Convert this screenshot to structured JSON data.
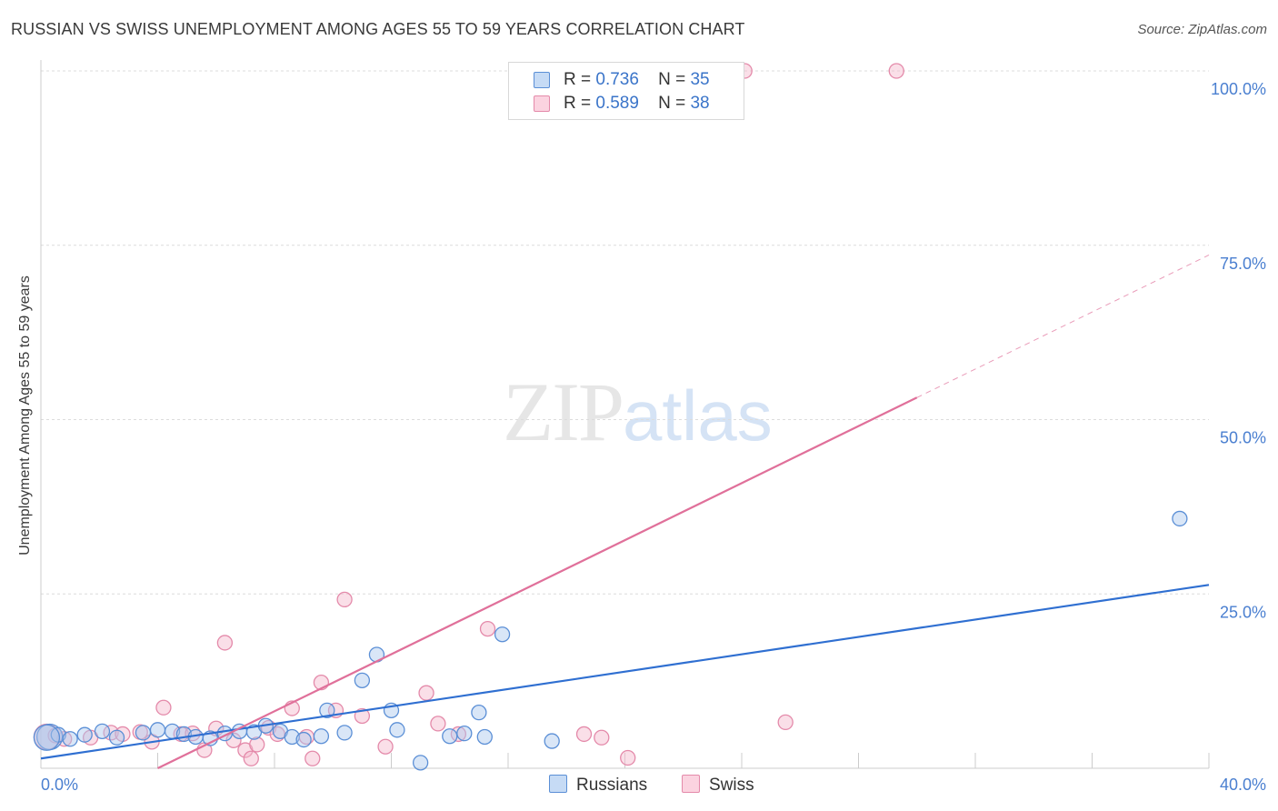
{
  "header": {
    "title": "RUSSIAN VS SWISS UNEMPLOYMENT AMONG AGES 55 TO 59 YEARS CORRELATION CHART",
    "source": "Source: ZipAtlas.com"
  },
  "watermark": {
    "zip": "ZIP",
    "atlas": "atlas"
  },
  "legend": {
    "rows": [
      {
        "r_label": "R =",
        "r_value": "0.736",
        "n_label": "N =",
        "n_value": "35"
      },
      {
        "r_label": "R =",
        "r_value": "0.589",
        "n_label": "N =",
        "n_value": "38"
      }
    ]
  },
  "bottom_legend": {
    "russians": "Russians",
    "swiss": "Swiss"
  },
  "colors": {
    "russians_fill": "#aac8ee",
    "russians_stroke": "#5b8fd6",
    "russians_line": "#2f6fd1",
    "swiss_fill": "#f5b8cc",
    "swiss_stroke": "#e48aaa",
    "swiss_line": "#e0709a"
  },
  "chart_data": {
    "type": "scatter",
    "title": "RUSSIAN VS SWISS UNEMPLOYMENT AMONG AGES 55 TO 59 YEARS CORRELATION CHART",
    "xlabel": "",
    "ylabel": "Unemployment Among Ages 55 to 59 years",
    "xlim": [
      0,
      40
    ],
    "ylim": [
      0,
      100
    ],
    "x_tick_labels": [
      "0.0%",
      "40.0%"
    ],
    "y_tick_labels": [
      "100.0%",
      "75.0%",
      "50.0%",
      "25.0%"
    ],
    "y_ticks": [
      100,
      75,
      50,
      25
    ],
    "grid": true,
    "series": [
      {
        "name": "Russians",
        "points": [
          [
            0.3,
            4.5
          ],
          [
            0.6,
            4.8
          ],
          [
            1.0,
            4.2
          ],
          [
            1.5,
            4.8
          ],
          [
            2.1,
            5.3
          ],
          [
            2.6,
            4.4
          ],
          [
            3.5,
            5.1
          ],
          [
            4.0,
            5.5
          ],
          [
            4.5,
            5.3
          ],
          [
            4.9,
            4.9
          ],
          [
            5.3,
            4.5
          ],
          [
            5.8,
            4.3
          ],
          [
            6.3,
            5.0
          ],
          [
            6.8,
            5.3
          ],
          [
            7.3,
            5.2
          ],
          [
            7.7,
            6.1
          ],
          [
            8.2,
            5.3
          ],
          [
            8.6,
            4.5
          ],
          [
            9.0,
            4.1
          ],
          [
            9.6,
            4.6
          ],
          [
            9.8,
            8.3
          ],
          [
            10.4,
            5.1
          ],
          [
            11.0,
            12.6
          ],
          [
            11.5,
            16.3
          ],
          [
            12.0,
            8.3
          ],
          [
            12.2,
            5.5
          ],
          [
            13.0,
            0.8
          ],
          [
            14.0,
            4.6
          ],
          [
            14.5,
            5.0
          ],
          [
            15.0,
            8.0
          ],
          [
            15.2,
            4.5
          ],
          [
            15.8,
            19.2
          ],
          [
            17.5,
            3.9
          ],
          [
            39.0,
            35.8
          ],
          [
            0.2,
            4.4
          ]
        ],
        "trend": {
          "x": [
            0,
            40
          ],
          "y": [
            1.4,
            26.3
          ]
        }
      },
      {
        "name": "Swiss",
        "points": [
          [
            0.2,
            4.5
          ],
          [
            0.8,
            4.2
          ],
          [
            1.7,
            4.4
          ],
          [
            2.4,
            5.1
          ],
          [
            2.8,
            4.9
          ],
          [
            3.4,
            5.2
          ],
          [
            3.8,
            3.8
          ],
          [
            4.2,
            8.7
          ],
          [
            4.8,
            4.9
          ],
          [
            5.2,
            5.0
          ],
          [
            5.6,
            2.6
          ],
          [
            6.0,
            5.7
          ],
          [
            6.3,
            18.0
          ],
          [
            6.6,
            4.0
          ],
          [
            7.0,
            2.6
          ],
          [
            7.2,
            1.4
          ],
          [
            7.4,
            3.4
          ],
          [
            7.8,
            5.8
          ],
          [
            8.1,
            4.9
          ],
          [
            8.6,
            8.6
          ],
          [
            9.1,
            4.5
          ],
          [
            9.3,
            1.4
          ],
          [
            9.6,
            12.3
          ],
          [
            10.1,
            8.3
          ],
          [
            10.4,
            24.2
          ],
          [
            11.0,
            7.5
          ],
          [
            11.8,
            3.1
          ],
          [
            13.2,
            10.8
          ],
          [
            13.6,
            6.4
          ],
          [
            14.3,
            4.9
          ],
          [
            15.3,
            20.0
          ],
          [
            18.6,
            4.9
          ],
          [
            19.2,
            4.4
          ],
          [
            20.1,
            1.5
          ],
          [
            25.5,
            6.6
          ],
          [
            24.1,
            100.0
          ],
          [
            29.3,
            100.0
          ],
          [
            0.5,
            4.7
          ]
        ],
        "trend": {
          "x": [
            4.0,
            40
          ],
          "y": [
            0,
            73.6
          ],
          "solid_until_x": 30.0
        }
      }
    ]
  }
}
